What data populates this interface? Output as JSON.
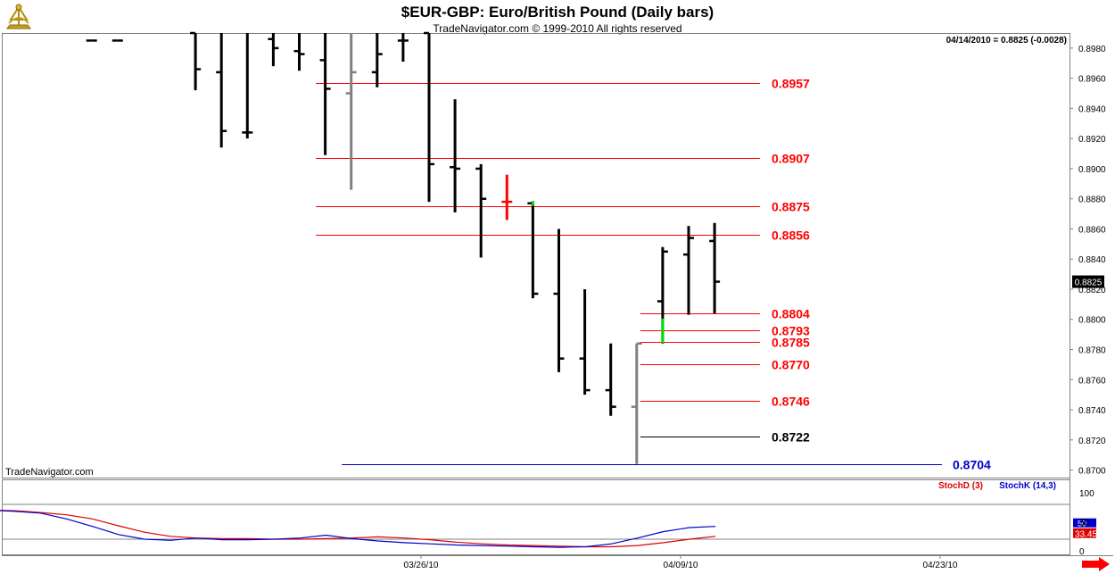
{
  "header": {
    "title": "$EUR-GBP:  Euro/British Pound  (Daily bars)",
    "copyright": "TradeNavigator.com © 1999-2010 All rights reserved",
    "quote": "04/14/2010 = 0.8825 (-0.0028)",
    "watermark": "TradeNavigator.com",
    "logo_icon": "sextant-logo-icon"
  },
  "chart_data": [
    {
      "type": "ohlc",
      "title": "$EUR-GBP:  Euro/British Pound  (Daily bars)",
      "ylim": [
        0.8695,
        0.899
      ],
      "y_ticks": [
        "0.8980",
        "0.8960",
        "0.8940",
        "0.8920",
        "0.8900",
        "0.8880",
        "0.8860",
        "0.8840",
        "0.8820",
        "0.8800",
        "0.8780",
        "0.8760",
        "0.8740",
        "0.8720",
        "0.8700"
      ],
      "last_price_label": "0.8825",
      "x_tick_labels": [
        {
          "label": "03/26/10",
          "index": 10
        },
        {
          "label": "04/09/10",
          "index": 20
        },
        {
          "label": "04/23/10",
          "index": 30
        }
      ],
      "bars": [
        {
          "i": -3,
          "open": 0.8985,
          "high": 0.8985,
          "low": 0.8985,
          "close": 0.8985,
          "color": "black"
        },
        {
          "i": -2,
          "open": 0.8985,
          "high": 0.8985,
          "low": 0.8985,
          "close": 0.8985,
          "color": "black"
        },
        {
          "i": 1,
          "open": 0.899,
          "high": 0.899,
          "low": 0.8952,
          "close": 0.8966,
          "color": "black"
        },
        {
          "i": 2,
          "open": 0.8964,
          "high": 0.899,
          "low": 0.8914,
          "close": 0.8925,
          "color": "black"
        },
        {
          "i": 3,
          "open": 0.8924,
          "high": 0.899,
          "low": 0.892,
          "close": 0.8924,
          "color": "black"
        },
        {
          "i": 4,
          "open": 0.8986,
          "high": 0.899,
          "low": 0.8968,
          "close": 0.898,
          "color": "black"
        },
        {
          "i": 5,
          "open": 0.8978,
          "high": 0.899,
          "low": 0.8965,
          "close": 0.8976,
          "color": "black"
        },
        {
          "i": 6,
          "open": 0.8972,
          "high": 0.899,
          "low": 0.8909,
          "close": 0.8953,
          "color": "black"
        },
        {
          "i": 7,
          "open": 0.895,
          "high": 0.899,
          "low": 0.8886,
          "close": 0.8964,
          "color": "gray"
        },
        {
          "i": 8,
          "open": 0.8964,
          "high": 0.899,
          "low": 0.8954,
          "close": 0.8976,
          "color": "black"
        },
        {
          "i": 9,
          "open": 0.8985,
          "high": 0.899,
          "low": 0.8971,
          "close": 0.8985,
          "color": "black"
        },
        {
          "i": 10,
          "open": 0.899,
          "high": 0.899,
          "low": 0.8878,
          "close": 0.8903,
          "color": "black"
        },
        {
          "i": 11,
          "open": 0.8901,
          "high": 0.8946,
          "low": 0.8871,
          "close": 0.89,
          "color": "black"
        },
        {
          "i": 12,
          "open": 0.89,
          "high": 0.8903,
          "low": 0.8841,
          "close": 0.888,
          "color": "black"
        },
        {
          "i": 13,
          "open": 0.8878,
          "high": 0.8896,
          "low": 0.8866,
          "close": 0.8878,
          "color": "red"
        },
        {
          "i": 14,
          "open": 0.8877,
          "high": 0.8878,
          "low": 0.8814,
          "close": 0.8817,
          "color": "black"
        },
        {
          "i": 15,
          "open": 0.8817,
          "high": 0.886,
          "low": 0.8765,
          "close": 0.8774,
          "color": "black"
        },
        {
          "i": 16,
          "open": 0.8774,
          "high": 0.882,
          "low": 0.875,
          "close": 0.8753,
          "color": "black"
        },
        {
          "i": 17,
          "open": 0.8753,
          "high": 0.8784,
          "low": 0.8736,
          "close": 0.8742,
          "color": "black"
        },
        {
          "i": 18,
          "open": 0.8742,
          "high": 0.8784,
          "low": 0.8704,
          "close": 0.8784,
          "color": "gray"
        },
        {
          "i": 19,
          "open": 0.8812,
          "high": 0.8848,
          "low": 0.8784,
          "close": 0.8845,
          "color": "black"
        },
        {
          "i": 20,
          "open": 0.8843,
          "high": 0.8862,
          "low": 0.8803,
          "close": 0.8854,
          "color": "black"
        },
        {
          "i": 21,
          "open": 0.8852,
          "high": 0.8864,
          "low": 0.8804,
          "close": 0.8825,
          "color": "black"
        }
      ],
      "highlights": [
        {
          "i": 14,
          "from": 0.8876,
          "to": 0.8878,
          "color": "green"
        },
        {
          "i": 19,
          "from": 0.8785,
          "to": 0.88,
          "color": "green"
        }
      ],
      "levels": [
        {
          "value": 0.8957,
          "label": "0.8957",
          "color": "red",
          "from_index": 5.5
        },
        {
          "value": 0.8907,
          "label": "0.8907",
          "color": "red",
          "from_index": 5.5
        },
        {
          "value": 0.8875,
          "label": "0.8875",
          "color": "red",
          "from_index": 5.5
        },
        {
          "value": 0.8856,
          "label": "0.8856",
          "color": "red",
          "from_index": 5.5
        },
        {
          "value": 0.8804,
          "label": "0.8804",
          "color": "red",
          "from_index": 18
        },
        {
          "value": 0.8793,
          "label": "0.8793",
          "color": "red",
          "from_index": 18
        },
        {
          "value": 0.8785,
          "label": "0.8785",
          "color": "red",
          "from_index": 18
        },
        {
          "value": 0.877,
          "label": "0.8770",
          "color": "red",
          "from_index": 18
        },
        {
          "value": 0.8746,
          "label": "0.8746",
          "color": "red",
          "from_index": 18
        },
        {
          "value": 0.8722,
          "label": "0.8722",
          "color": "black",
          "from_index": 18
        },
        {
          "value": 0.8704,
          "label": "0.8704",
          "color": "blue",
          "from_index": 6.5
        }
      ]
    },
    {
      "type": "line",
      "ylim": [
        0,
        100
      ],
      "y_ticks": [
        "100",
        "50",
        "0"
      ],
      "reference_lines": [
        80,
        20
      ],
      "legend_placement": "top-right",
      "series": [
        {
          "name": "StochD (3)",
          "color": "#dd0000",
          "x": [
            -7,
            -6,
            -5,
            -4,
            -3,
            -2,
            -1,
            0,
            1,
            2,
            3,
            4,
            5,
            6,
            7,
            8,
            9,
            10,
            11,
            12,
            13,
            14,
            15,
            16,
            17,
            18,
            19,
            20,
            21
          ],
          "y": [
            70,
            69,
            66,
            62,
            55,
            43,
            32,
            25,
            22,
            21,
            21,
            20,
            20,
            21,
            22,
            24,
            22,
            19,
            15,
            12,
            10,
            9,
            8,
            7,
            7,
            9,
            14,
            20,
            25
          ]
        },
        {
          "name": "StochK (14,3)",
          "color": "#0000cc",
          "x": [
            -7,
            -6,
            -5,
            -4,
            -3,
            -2,
            -1,
            0,
            1,
            2,
            3,
            4,
            5,
            6,
            7,
            8,
            9,
            10,
            11,
            12,
            13,
            14,
            15,
            16,
            17,
            18,
            19,
            20,
            21
          ],
          "y": [
            70,
            68,
            65,
            55,
            42,
            28,
            20,
            18,
            22,
            19,
            19,
            20,
            22,
            27,
            21,
            17,
            14,
            12,
            10,
            9,
            8,
            7,
            6,
            7,
            12,
            22,
            33,
            40,
            42
          ]
        }
      ],
      "value_labels": [
        "50",
        "33.45"
      ]
    }
  ]
}
